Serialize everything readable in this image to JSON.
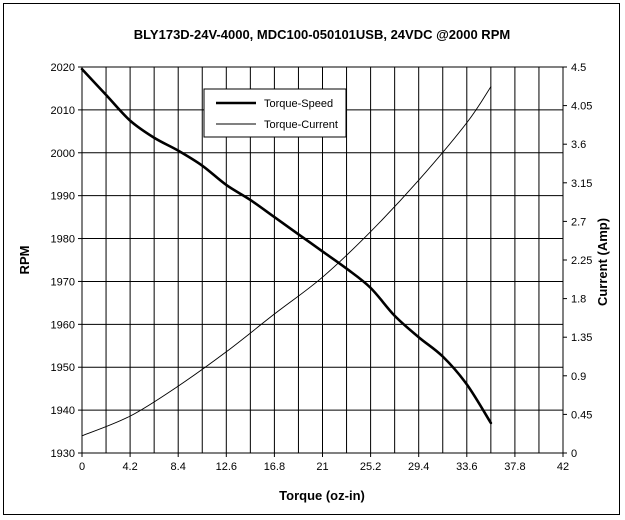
{
  "chart_data": {
    "type": "line",
    "title": "BLY173D-24V-4000,  MDC100-050101USB,  24VDC @2000 RPM",
    "xlabel": "Torque (oz-in)",
    "ylabel": "RPM",
    "y2label": "Current (Amp)",
    "xlim": [
      0,
      42
    ],
    "ylim": [
      1930,
      2020
    ],
    "y2lim": [
      0,
      4.5
    ],
    "x_ticks": [
      "0",
      "4.2",
      "8.4",
      "12.6",
      "16.8",
      "21",
      "25.2",
      "29.4",
      "33.6",
      "37.8",
      "42"
    ],
    "y_ticks": [
      "1930",
      "1940",
      "1950",
      "1960",
      "1970",
      "1980",
      "1990",
      "2000",
      "2010",
      "2020"
    ],
    "y2_ticks": [
      "0",
      "0.45",
      "0.9",
      "1.35",
      "1.8",
      "2.25",
      "2.7",
      "3.15",
      "3.6",
      "4.05",
      "4.5"
    ],
    "grid": true,
    "legend_position": "top-center",
    "series": [
      {
        "name": "Torque-Speed",
        "axis": "left",
        "color": "#000000",
        "line": "thick",
        "x": [
          0,
          2.1,
          4.2,
          6.3,
          8.4,
          10.5,
          12.6,
          14.7,
          16.8,
          18.9,
          21,
          23.1,
          25.2,
          27.3,
          29.4,
          31.5,
          33.6,
          35.7
        ],
        "y": [
          2019.5,
          2013.5,
          2007.5,
          2003.5,
          2000.5,
          1997,
          1992.5,
          1989,
          1985,
          1981,
          1977,
          1973,
          1968.5,
          1962,
          1957,
          1952.5,
          1946,
          1937
        ]
      },
      {
        "name": "Torque-Current",
        "axis": "right",
        "color": "#000000",
        "line": "thin",
        "x": [
          0,
          4.2,
          8.4,
          12.6,
          16.8,
          21,
          25.2,
          29.4,
          33.6,
          35.7
        ],
        "y": [
          0.2,
          0.43,
          0.78,
          1.18,
          1.62,
          2.05,
          2.58,
          3.18,
          3.85,
          4.27
        ]
      }
    ]
  }
}
